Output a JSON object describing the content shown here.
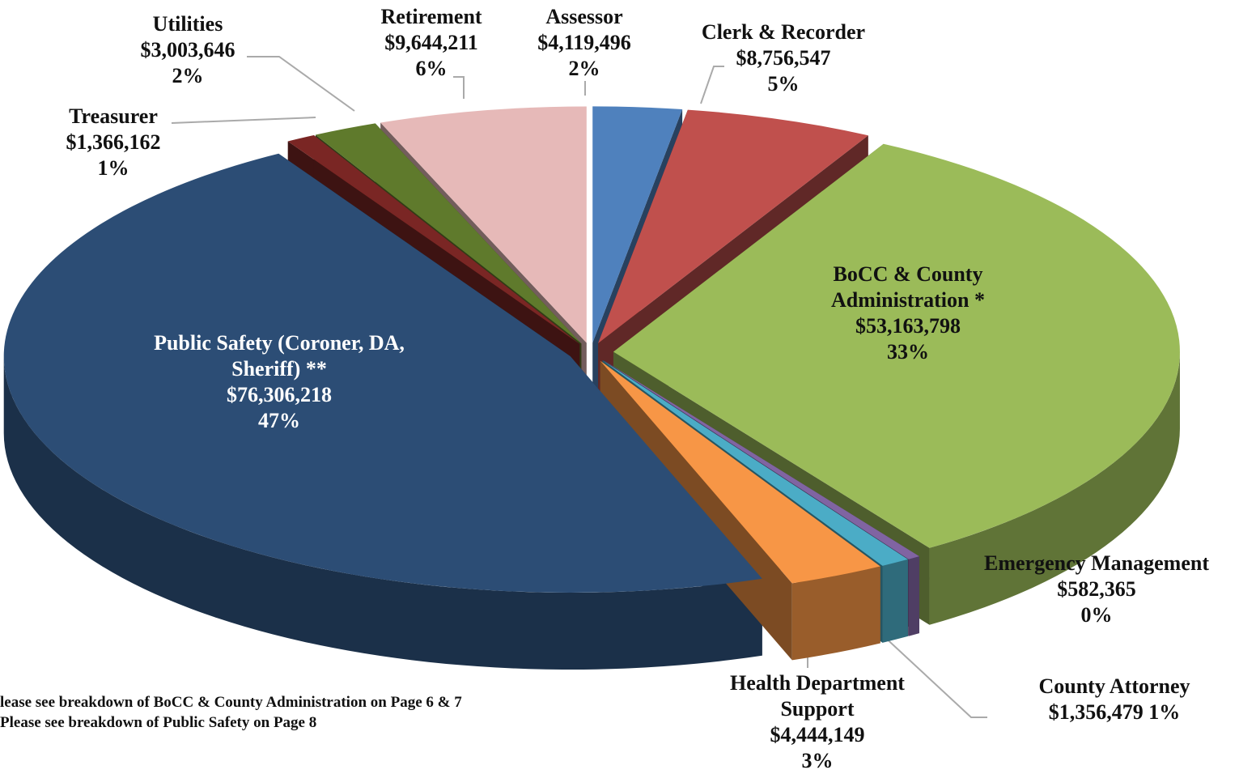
{
  "chart_data": {
    "type": "pie3d",
    "categories": [
      "Assessor",
      "Clerk & Recorder",
      "BoCC & County Administration *",
      "Emergency Management",
      "County Attorney",
      "Health Department Support",
      "Public Safety (Coroner, DA, Sheriff) **",
      "Treasurer",
      "Utilities",
      "Retirement"
    ],
    "values": [
      4119496,
      8756547,
      53163798,
      582365,
      1356479,
      4444149,
      76306218,
      1366162,
      3003646,
      9644211
    ],
    "value_labels": [
      "$4,119,496",
      "$8,756,547",
      "$53,163,798",
      "$582,365",
      "$1,356,479",
      "$4,444,149",
      "$76,306,218",
      "$1,366,162",
      "$3,003,646",
      "$9,644,211"
    ],
    "percents": [
      2,
      5,
      33,
      0,
      1,
      3,
      47,
      1,
      2,
      6
    ],
    "percent_labels": [
      "2%",
      "5%",
      "33%",
      "0%",
      "1%",
      "3%",
      "47%",
      "1%",
      "2%",
      "6%"
    ],
    "colors": [
      "#4f81bd",
      "#c0504d",
      "#9bbb59",
      "#8064a2",
      "#4bacc6",
      "#f79646",
      "#2c4d75",
      "#7a2624",
      "#5f7a2c",
      "#e6b9b8"
    ],
    "footnotes": [
      "lease see breakdown of BoCC & County Administration  on Page 6 & 7",
      "Please see breakdown of Public Safety on Page 8"
    ]
  }
}
